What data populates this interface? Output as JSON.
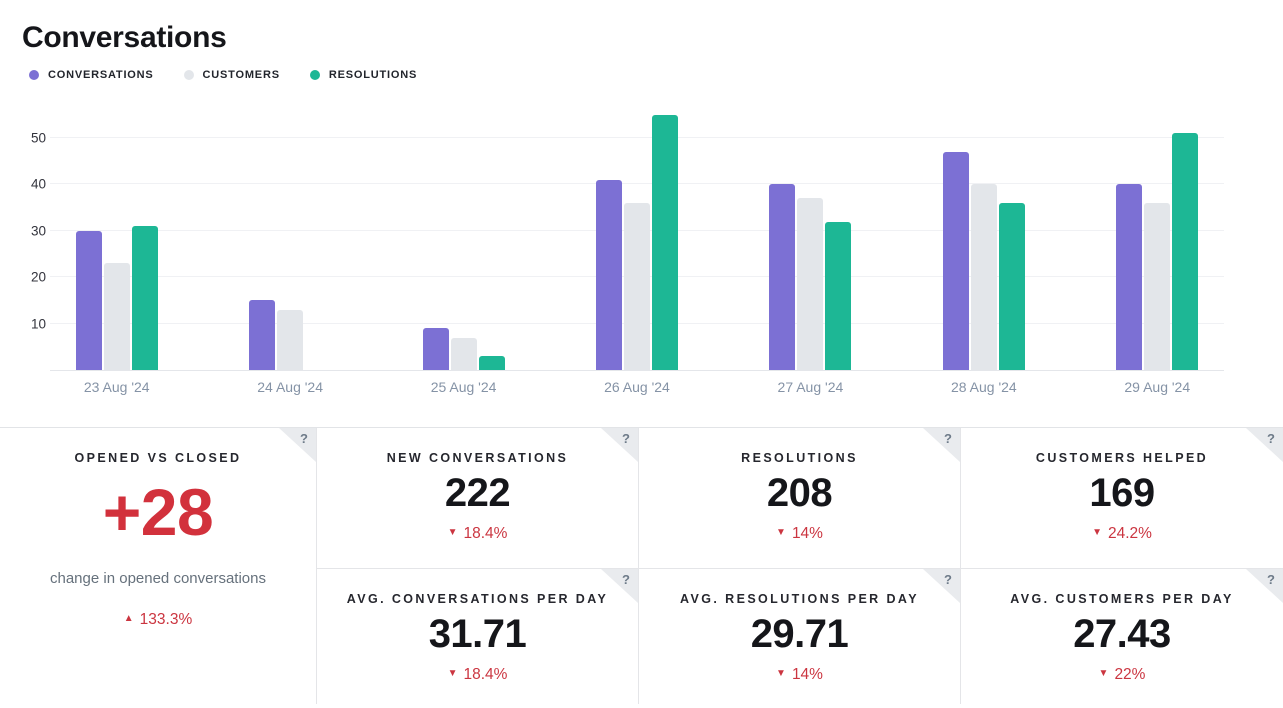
{
  "header": {
    "title": "Conversations"
  },
  "help_icon": "?",
  "chart_data": {
    "type": "bar",
    "title": "Conversations",
    "categories": [
      "23 Aug '24",
      "24 Aug '24",
      "25 Aug '24",
      "26 Aug '24",
      "27 Aug '24",
      "28 Aug '24",
      "29 Aug '24"
    ],
    "series": [
      {
        "name": "CONVERSATIONS",
        "color": "#7c70d4",
        "values": [
          30,
          15,
          9,
          41,
          40,
          47,
          40
        ]
      },
      {
        "name": "CUSTOMERS",
        "color": "#e3e6ea",
        "values": [
          23,
          13,
          7,
          36,
          37,
          40,
          36
        ]
      },
      {
        "name": "RESOLUTIONS",
        "color": "#1db795",
        "values": [
          31,
          0,
          3,
          55,
          32,
          36,
          51
        ]
      }
    ],
    "xlabel": "",
    "ylabel": "",
    "yticks": [
      10,
      20,
      30,
      40,
      50
    ],
    "ylim": [
      0,
      56.7
    ],
    "grid": true,
    "legend_position": "top-left"
  },
  "cards": {
    "opened_vs_closed": {
      "title": "OPENED VS CLOSED",
      "value": "+28",
      "caption": "change in opened conversations",
      "delta": "133.3%",
      "direction": "up"
    },
    "new_conversations": {
      "title": "NEW CONVERSATIONS",
      "value": "222",
      "delta": "18.4%",
      "direction": "down"
    },
    "resolutions": {
      "title": "RESOLUTIONS",
      "value": "208",
      "delta": "14%",
      "direction": "down"
    },
    "customers_helped": {
      "title": "CUSTOMERS HELPED",
      "value": "169",
      "delta": "24.2%",
      "direction": "down"
    },
    "avg_conversations_per_day": {
      "title": "AVG. CONVERSATIONS PER DAY",
      "value": "31.71",
      "delta": "18.4%",
      "direction": "down"
    },
    "avg_resolutions_per_day": {
      "title": "AVG. RESOLUTIONS PER DAY",
      "value": "29.71",
      "delta": "14%",
      "direction": "down"
    },
    "avg_customers_per_day": {
      "title": "AVG. CUSTOMERS PER DAY",
      "value": "27.43",
      "delta": "22%",
      "direction": "down"
    }
  },
  "colors": {
    "accent_purple": "#7c70d4",
    "neutral_gray_bar": "#e3e6ea",
    "accent_teal": "#1db795",
    "negative_red": "#cb3540",
    "value_red": "#d2313c"
  }
}
